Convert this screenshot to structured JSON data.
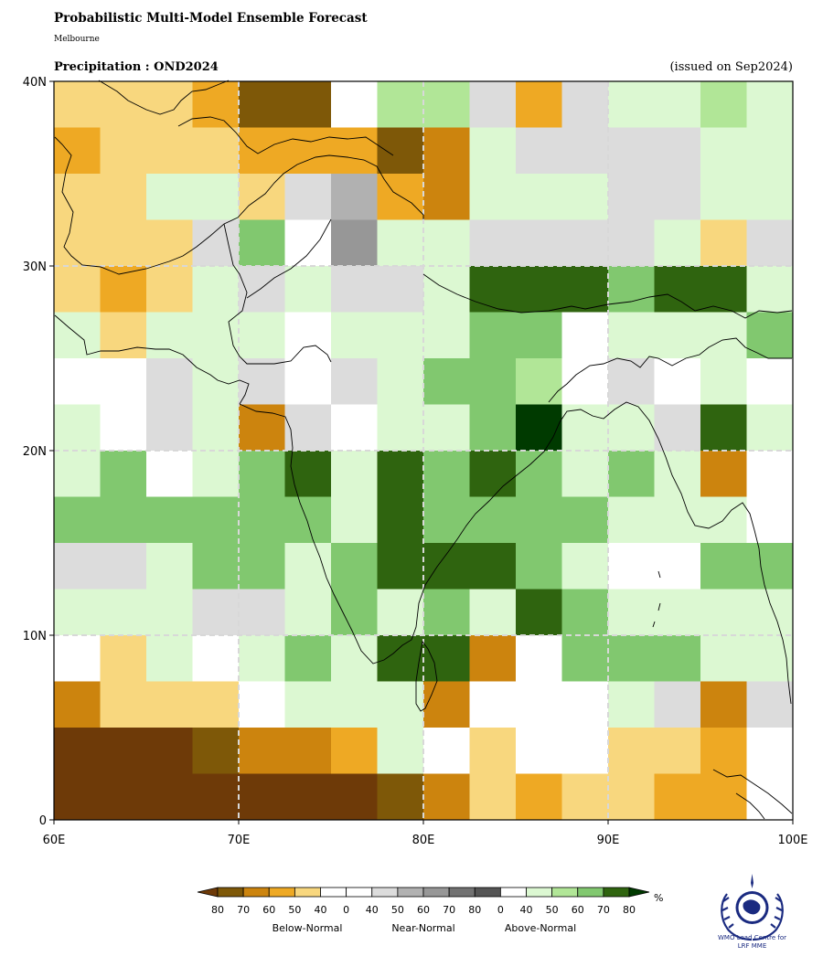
{
  "header": {
    "title": "Probabilistic Multi-Model Ensemble Forecast",
    "subtitle": "Melbourne",
    "variable": "Precipitation : OND2024",
    "issued": "(issued on Sep2024)"
  },
  "map": {
    "lon_range": [
      60,
      100
    ],
    "lat_range": [
      0,
      40
    ],
    "cell_size_deg": 2.5,
    "lon_ticks": [
      "60E",
      "70E",
      "80E",
      "90E",
      "100E"
    ],
    "lat_ticks": [
      "0",
      "10N",
      "20N",
      "30N",
      "40N"
    ],
    "gridlines": true,
    "grid_rows_north_to_south": [
      "yyyobbwGGnonWWGW",
      "oyyyooobrWnnnnWW",
      "yyWWyniorWWWnnWW",
      "yyyngwlWWnnnnWyn",
      "yoyWnWnnWDDDgDDW",
      "WyWWWNWWWggwWWWg",
      "wwnWnwnWggGwnwW",
      "WwnWrnwWWgQWWnDWn",
      "WgwWgDWDgDgWgWr",
      "ggggggWDggggWWW",
      "nnWggWgDDDgWwwgg",
      "WWWnnWgWgWDgWWWW",
      "wyWwWgWDDrwgggWW",
      "ryyywWWWr wwWnrnnn",
      "mmmbrroWwywwyyow",
      "mmmmmmmbryoyyoo",
      "mbbbbroywWWWWWW"
    ]
  },
  "legend": {
    "unit": "%",
    "labels": [
      "80",
      "70",
      "60",
      "50",
      "40",
      "0",
      "40",
      "50",
      "60",
      "70",
      "80",
      "0",
      "40",
      "50",
      "60",
      "70",
      "80"
    ],
    "groups": [
      "Below-Normal",
      "Near-Normal",
      "Above-Normal"
    ],
    "colors": {
      "m": "#6e3a08",
      "b": "#7e5808",
      "r": "#cc840e",
      "o": "#eea924",
      "y": "#f8d77e",
      "w": "#ffffff",
      "n": "#dcdcdc",
      "i": "#b1b1b1",
      "g2": "#979797",
      "d": "#727272",
      "k": "#555555",
      "L": "#dcf8d2",
      "W": "#b1e697",
      "g": "#81c86f",
      "G": "#2f640f",
      "Q": "#003a00"
    }
  },
  "logo": {
    "caption_line1": "WMO Lead Centre for",
    "caption_line2": "LRF MME"
  }
}
